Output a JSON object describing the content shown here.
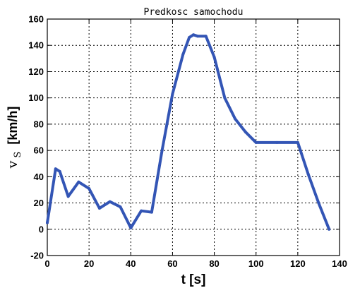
{
  "chart_data": {
    "type": "line",
    "title": "Predkosc samochodu",
    "xlabel": "t [s]",
    "ylabel": {
      "symbol": "v",
      "subscript": "S",
      "unit": "[km/h]"
    },
    "xlim": [
      0,
      140
    ],
    "ylim": [
      -20,
      160
    ],
    "xticks": [
      0,
      20,
      40,
      60,
      80,
      100,
      120,
      140
    ],
    "yticks": [
      -20,
      0,
      20,
      40,
      60,
      80,
      100,
      120,
      140,
      160
    ],
    "grid": true,
    "series": [
      {
        "color": "#3355b5",
        "x": [
          0,
          4,
          6,
          10,
          15,
          20,
          25,
          30,
          35,
          40,
          45,
          50,
          55,
          60,
          65,
          68,
          70,
          72,
          76,
          80,
          85,
          90,
          95,
          100,
          110,
          120,
          125,
          130,
          135
        ],
        "y": [
          5,
          46,
          44,
          25,
          36,
          31,
          16,
          21,
          17,
          1,
          14,
          13,
          60,
          103,
          133,
          146,
          148,
          147,
          147,
          131,
          100,
          84,
          74,
          66,
          66,
          66,
          42,
          20,
          0
        ]
      }
    ]
  }
}
